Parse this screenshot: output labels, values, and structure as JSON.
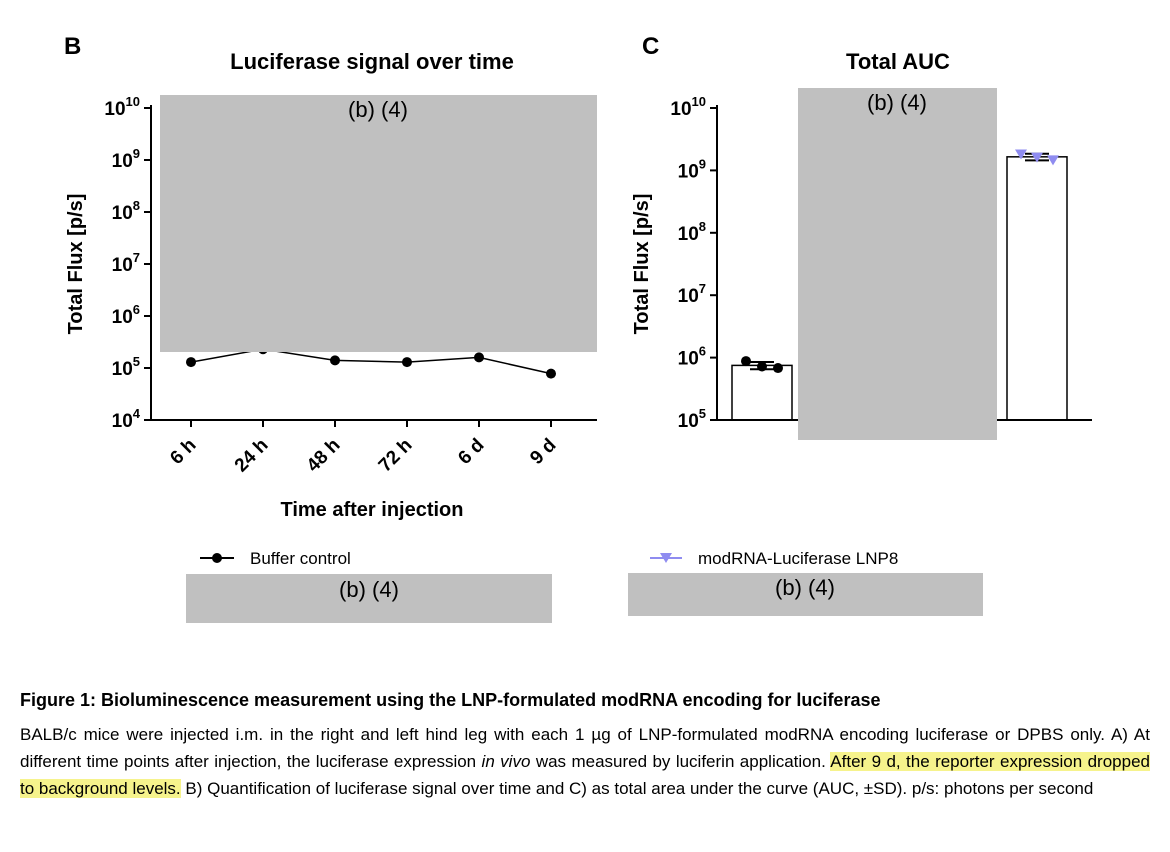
{
  "colors": {
    "redaction": "#c0c0c0",
    "buffer_series": "#000000",
    "luciferase_series": "#8f8cf0",
    "highlight": "#f6f38c"
  },
  "panels": {
    "b": {
      "letter": "B",
      "redaction_label": "(b) (4)"
    },
    "c": {
      "letter": "C",
      "redaction_label": "(b) (4)"
    }
  },
  "legend": {
    "buffer": "Buffer control",
    "luciferase": "modRNA-Luciferase LNP8",
    "redaction_label_left": "(b) (4)",
    "redaction_label_right": "(b) (4)"
  },
  "chart_data": [
    {
      "type": "line",
      "title": "Luciferase signal over time",
      "xlabel": "Time after injection",
      "ylabel": "Total Flux [p/s]",
      "yscale": "log",
      "ylim": [
        10000,
        10000000000
      ],
      "y_ticks": [
        {
          "base": "10",
          "exp": "4",
          "value": 10000
        },
        {
          "base": "10",
          "exp": "5",
          "value": 100000
        },
        {
          "base": "10",
          "exp": "6",
          "value": 1000000
        },
        {
          "base": "10",
          "exp": "7",
          "value": 10000000
        },
        {
          "base": "10",
          "exp": "8",
          "value": 100000000
        },
        {
          "base": "10",
          "exp": "9",
          "value": 1000000000
        },
        {
          "base": "10",
          "exp": "10",
          "value": 10000000000
        }
      ],
      "categories": [
        "6 h",
        "24 h",
        "48 h",
        "72 h",
        "6 d",
        "9 d"
      ],
      "series": [
        {
          "name": "Buffer control",
          "values": [
            130000,
            230000,
            140000,
            130000,
            160000,
            78000
          ]
        }
      ],
      "redaction_label": "(b) (4)"
    },
    {
      "type": "bar",
      "title": "Total AUC",
      "xlabel": "",
      "ylabel": "Total Flux [p/s]",
      "yscale": "log",
      "ylim": [
        100000,
        10000000000
      ],
      "y_ticks": [
        {
          "base": "10",
          "exp": "5",
          "value": 100000
        },
        {
          "base": "10",
          "exp": "6",
          "value": 1000000
        },
        {
          "base": "10",
          "exp": "7",
          "value": 10000000
        },
        {
          "base": "10",
          "exp": "8",
          "value": 100000000
        },
        {
          "base": "10",
          "exp": "9",
          "value": 1000000000
        },
        {
          "base": "10",
          "exp": "10",
          "value": 10000000000
        }
      ],
      "categories": [
        "Buffer control",
        "modRNA-Luciferase LNP8"
      ],
      "values": [
        750000,
        1650000000
      ],
      "error_bars": [
        [
          650000,
          850000
        ],
        [
          1450000000,
          1850000000
        ]
      ],
      "points": [
        [
          880000,
          720000,
          680000
        ],
        [
          1800000000,
          1600000000,
          1450000000
        ]
      ],
      "redaction_label": "(b) (4)"
    }
  ],
  "caption": {
    "title": "Figure 1: Bioluminescence measurement using the LNP-formulated modRNA encoding for luciferase",
    "body_1": "BALB/c mice were injected i.m. in the right and left hind leg with each 1 µg of LNP-formulated modRNA encoding luciferase or DPBS only. A) At different time points after injection, the luciferase expression ",
    "body_italic": "in vivo",
    "body_2": " was measured by luciferin application. ",
    "body_highlight": "After 9 d, the reporter expression dropped to background levels.",
    "body_3": " B) Quantification of luciferase signal over time and C) as total area under the curve (AUC, ±SD). p/s: photons per second"
  }
}
